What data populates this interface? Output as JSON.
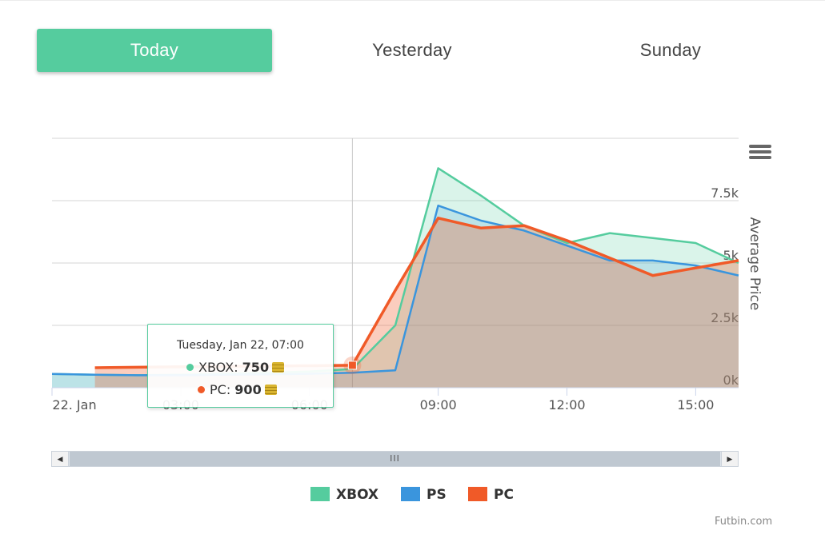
{
  "tabs": [
    {
      "label": "Today",
      "active": true
    },
    {
      "label": "Yesterday",
      "active": false
    },
    {
      "label": "Sunday",
      "active": false
    }
  ],
  "chart_data": {
    "type": "area",
    "ylabel": "Average Price",
    "ylim": [
      0,
      10000
    ],
    "yticks": [
      0,
      2500,
      5000,
      7500
    ],
    "ytick_labels": [
      "0k",
      "2.5k",
      "5k",
      "7.5k"
    ],
    "xlim": [
      "22. Jan 00:00",
      "22. Jan 16:00"
    ],
    "xticks": [
      "22. Jan 00:00",
      "22. Jan 03:00",
      "22. Jan 06:00",
      "22. Jan 09:00",
      "22. Jan 12:00",
      "22. Jan 15:00"
    ],
    "xtick_labels": [
      "22. Jan",
      "03:00",
      "06:00",
      "09:00",
      "12:00",
      "15:00"
    ],
    "grid": true,
    "legend_position": "bottom-center",
    "series": [
      {
        "name": "XBOX",
        "color": "#55cc9e",
        "points": [
          [
            "22. Jan 00:00",
            550
          ],
          [
            "22. Jan 01:00",
            520
          ],
          [
            "22. Jan 02:00",
            500
          ],
          [
            "22. Jan 03:00",
            520
          ],
          [
            "22. Jan 04:00",
            560
          ],
          [
            "22. Jan 05:00",
            600
          ],
          [
            "22. Jan 06:00",
            650
          ],
          [
            "22. Jan 07:00",
            750
          ],
          [
            "22. Jan 08:00",
            2500
          ],
          [
            "22. Jan 09:00",
            8800
          ],
          [
            "22. Jan 10:00",
            7700
          ],
          [
            "22. Jan 11:00",
            6500
          ],
          [
            "22. Jan 12:00",
            5800
          ],
          [
            "22. Jan 13:00",
            6200
          ],
          [
            "22. Jan 14:00",
            6000
          ],
          [
            "22. Jan 15:00",
            5800
          ],
          [
            "22. Jan 16:00",
            5000
          ]
        ]
      },
      {
        "name": "PS",
        "color": "#3a95dd",
        "points": [
          [
            "22. Jan 00:00",
            550
          ],
          [
            "22. Jan 01:00",
            520
          ],
          [
            "22. Jan 02:00",
            500
          ],
          [
            "22. Jan 03:00",
            500
          ],
          [
            "22. Jan 04:00",
            520
          ],
          [
            "22. Jan 05:00",
            540
          ],
          [
            "22. Jan 06:00",
            560
          ],
          [
            "22. Jan 07:00",
            600
          ],
          [
            "22. Jan 08:00",
            700
          ],
          [
            "22. Jan 09:00",
            7300
          ],
          [
            "22. Jan 10:00",
            6700
          ],
          [
            "22. Jan 11:00",
            6300
          ],
          [
            "22. Jan 12:00",
            5700
          ],
          [
            "22. Jan 13:00",
            5100
          ],
          [
            "22. Jan 14:00",
            5100
          ],
          [
            "22. Jan 15:00",
            4900
          ],
          [
            "22. Jan 16:00",
            4500
          ]
        ]
      },
      {
        "name": "PC",
        "color": "#f05a28",
        "points": [
          [
            "22. Jan 01:00",
            800
          ],
          [
            "22. Jan 02:00",
            820
          ],
          [
            "22. Jan 03:00",
            840
          ],
          [
            "22. Jan 04:00",
            860
          ],
          [
            "22. Jan 05:00",
            870
          ],
          [
            "22. Jan 06:00",
            880
          ],
          [
            "22. Jan 07:00",
            900
          ],
          [
            "22. Jan 08:00",
            3900
          ],
          [
            "22. Jan 09:00",
            6800
          ],
          [
            "22. Jan 10:00",
            6400
          ],
          [
            "22. Jan 11:00",
            6500
          ],
          [
            "22. Jan 12:00",
            5900
          ],
          [
            "22. Jan 13:00",
            5200
          ],
          [
            "22. Jan 14:00",
            4500
          ],
          [
            "22. Jan 15:00",
            4800
          ],
          [
            "22. Jan 16:00",
            5100
          ]
        ]
      }
    ],
    "crosshair_at": "22. Jan 07:00"
  },
  "tooltip": {
    "title": "Tuesday, Jan 22, 07:00",
    "rows": [
      {
        "series": "XBOX",
        "label": "XBOX: ",
        "value": "750",
        "color": "#55cc9e"
      },
      {
        "series": "PC",
        "label": "PC: ",
        "value": "900",
        "color": "#f05a28"
      }
    ],
    "coin_icon": "coins-icon"
  },
  "scrollbar": {
    "grip": "III",
    "left_arrow": "◀",
    "right_arrow": "▶"
  },
  "legend": [
    {
      "label": "XBOX",
      "color": "#55cc9e"
    },
    {
      "label": "PS",
      "color": "#3a95dd"
    },
    {
      "label": "PC",
      "color": "#f05a28"
    }
  ],
  "menu_icon": "hamburger-menu-icon",
  "credits": "Futbin.com"
}
